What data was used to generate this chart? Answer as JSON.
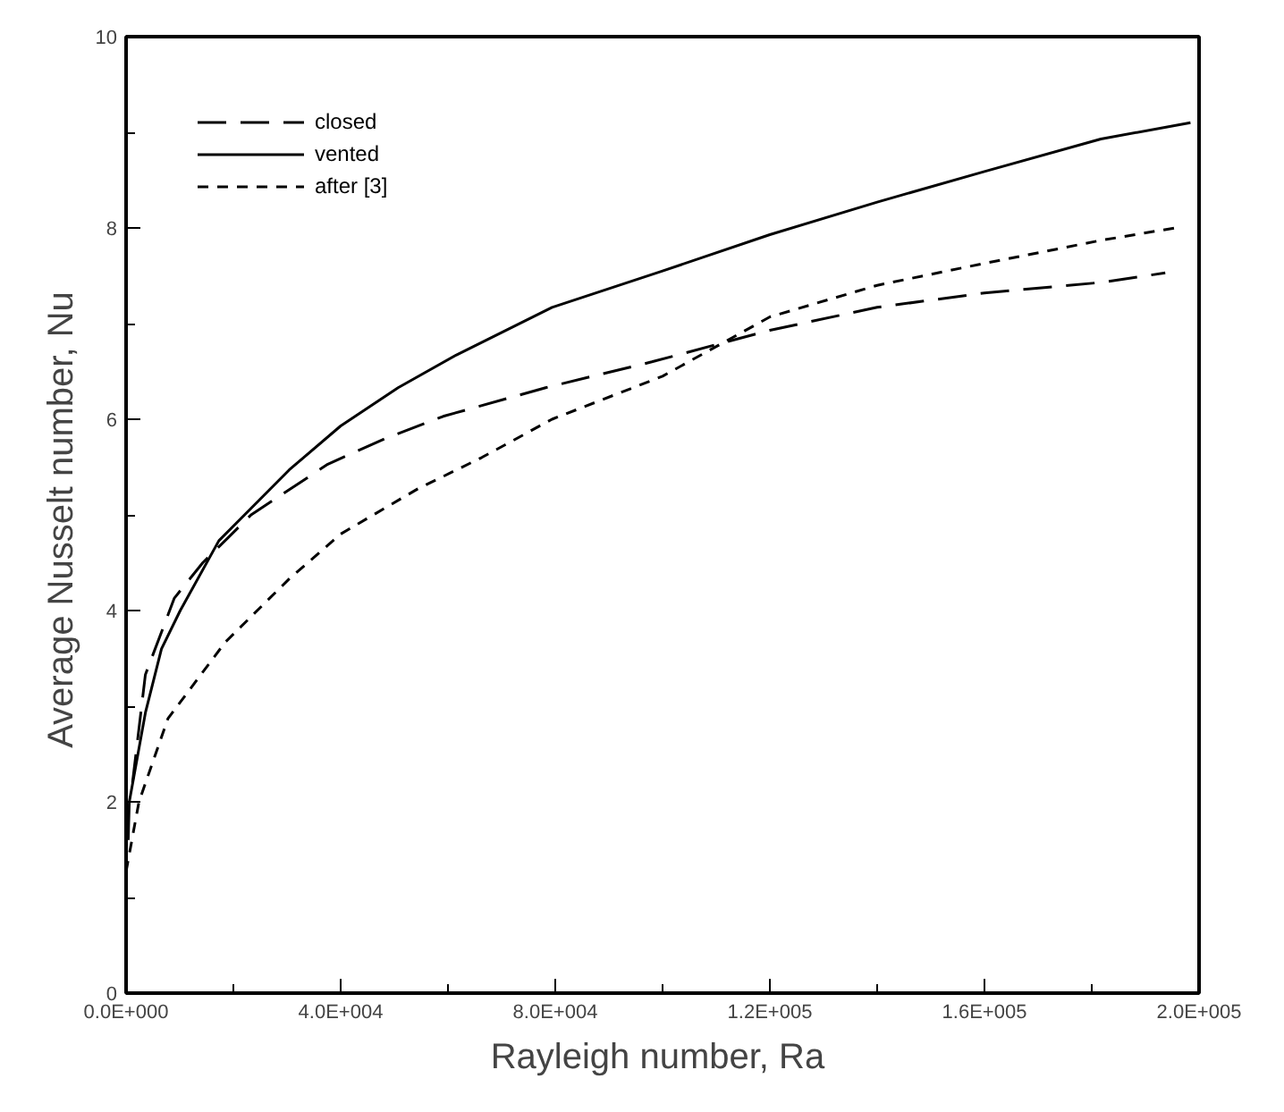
{
  "chart_data": {
    "type": "line",
    "xlabel": "Rayleigh number,  Ra",
    "ylabel": "Average Nusselt number,  Nu",
    "xlim": [
      0,
      200000
    ],
    "ylim": [
      0,
      10
    ],
    "xticks": [
      {
        "value": 0,
        "label": "0.0E+000"
      },
      {
        "value": 40000,
        "label": "4.0E+004"
      },
      {
        "value": 80000,
        "label": "8.0E+004"
      },
      {
        "value": 120000,
        "label": "1.2E+005"
      },
      {
        "value": 160000,
        "label": "1.6E+005"
      },
      {
        "value": 200000,
        "label": "2.0E+005"
      }
    ],
    "yticks": [
      0,
      2,
      4,
      6,
      8,
      10
    ],
    "legend": "top left",
    "grid": false,
    "series": [
      {
        "name": "closed",
        "color": "#000000",
        "line_style": "dashed",
        "x": [
          1200,
          3600,
          9000,
          14300,
          23300,
          37600,
          48400,
          59100,
          78200,
          98000,
          120000,
          140000,
          160000,
          181700,
          193700
        ],
        "values": [
          2.2,
          3.33,
          4.13,
          4.5,
          5.0,
          5.53,
          5.8,
          6.03,
          6.33,
          6.6,
          6.93,
          7.17,
          7.32,
          7.43,
          7.53
        ]
      },
      {
        "name": "vented",
        "color": "#000000",
        "line_style": "solid",
        "x": [
          400,
          600,
          3600,
          6600,
          10100,
          17300,
          30400,
          40000,
          50700,
          61500,
          79400,
          100000,
          120000,
          140000,
          160000,
          181700,
          198400
        ],
        "values": [
          1.6,
          2.0,
          2.93,
          3.6,
          4.0,
          4.73,
          5.47,
          5.93,
          6.33,
          6.67,
          7.17,
          7.55,
          7.93,
          8.27,
          8.59,
          8.93,
          9.1
        ]
      },
      {
        "name": "after [3]",
        "color": "#000000",
        "line_style": "dotted",
        "x": [
          0,
          2400,
          7800,
          18500,
          30400,
          40000,
          54300,
          66300,
          79400,
          100000,
          120000,
          140000,
          160000,
          181700,
          195500
        ],
        "values": [
          1.27,
          2.0,
          2.87,
          3.67,
          4.33,
          4.8,
          5.27,
          5.6,
          6.0,
          6.45,
          7.07,
          7.4,
          7.63,
          7.87,
          8.0
        ]
      }
    ]
  }
}
